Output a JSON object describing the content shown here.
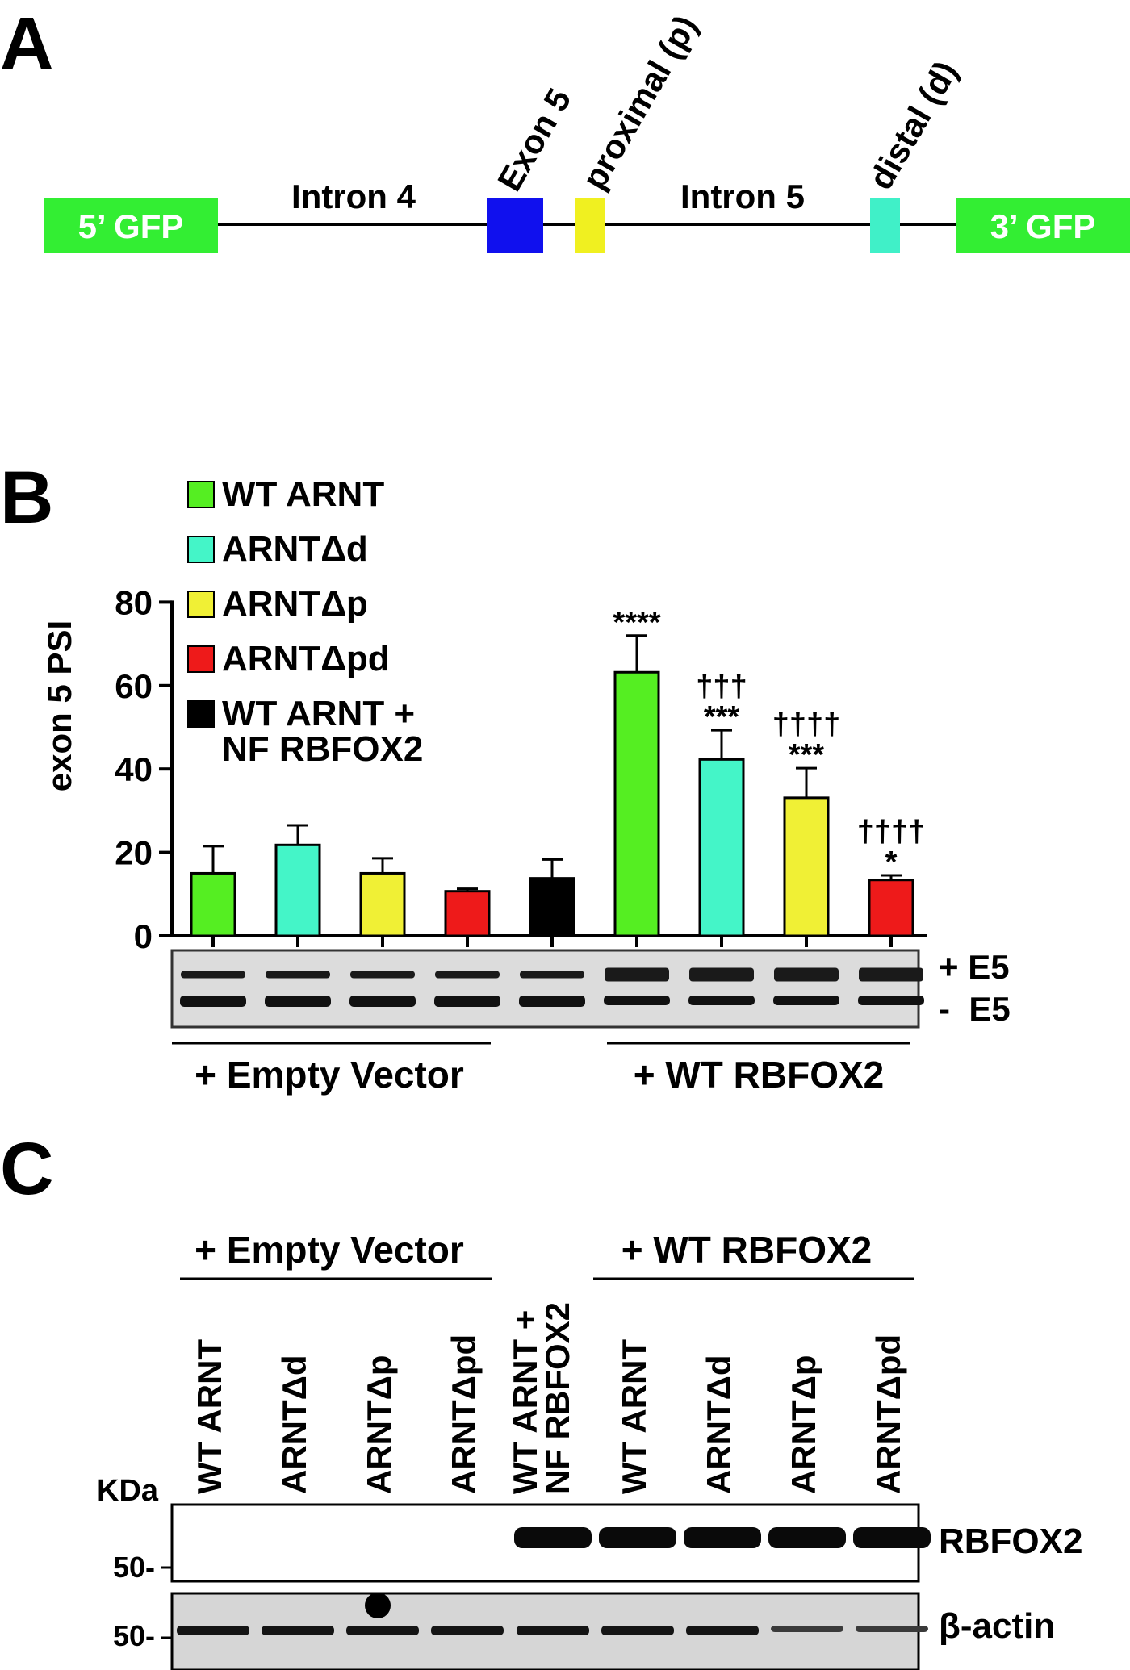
{
  "panels": {
    "a": {
      "letter": "A"
    },
    "b": {
      "letter": "B"
    },
    "c": {
      "letter": "C"
    }
  },
  "construct": {
    "gfp5": "5’ GFP",
    "intron4": "Intron 4",
    "exon5": "Exon 5",
    "proximal": "proximal (p)",
    "intron5": "Intron 5",
    "distal": "distal (d)",
    "gfp3": "3’ GFP",
    "colors": {
      "gfp": "#33ee33",
      "exon5": "#1010ee",
      "proximal": "#f0f020",
      "distal": "#40f0c8"
    }
  },
  "chart_data": {
    "type": "bar",
    "ylabel": "exon 5 PSI",
    "ylim": [
      0,
      80
    ],
    "yticks": [
      0,
      20,
      40,
      60,
      80
    ],
    "legend_position": "top-left",
    "series": [
      {
        "name": "WT ARNT",
        "color": "#55ee22"
      },
      {
        "name": "ARNTΔd",
        "color": "#44f5c8"
      },
      {
        "name": "ARNTΔp",
        "color": "#f0f035"
      },
      {
        "name": "ARNTΔpd",
        "color": "#ee1a1a"
      },
      {
        "name": "WT ARNT + NF RBFOX2",
        "color": "#000000"
      }
    ],
    "legend_lines": [
      [
        "WT ARNT"
      ],
      [
        "ARNTΔd"
      ],
      [
        "ARNTΔp"
      ],
      [
        "ARNTΔpd"
      ],
      [
        "WT ARNT +",
        "NF RBFOX2"
      ]
    ],
    "bars": [
      {
        "series": "WT ARNT",
        "group": "+ Empty Vector",
        "value": 15,
        "error": 6.5,
        "daggers": "",
        "stars": ""
      },
      {
        "series": "ARNTΔd",
        "group": "+ Empty Vector",
        "value": 21.8,
        "error": 4.7,
        "daggers": "",
        "stars": ""
      },
      {
        "series": "ARNTΔp",
        "group": "+ Empty Vector",
        "value": 15,
        "error": 3.6,
        "daggers": "",
        "stars": ""
      },
      {
        "series": "ARNTΔpd",
        "group": "+ Empty Vector",
        "value": 10.7,
        "error": 0.6,
        "daggers": "",
        "stars": ""
      },
      {
        "series": "WT ARNT + NF RBFOX2",
        "group": "",
        "value": 13.8,
        "error": 4.5,
        "daggers": "",
        "stars": ""
      },
      {
        "series": "WT ARNT",
        "group": "+ WT RBFOX2",
        "value": 63.2,
        "error": 8.8,
        "daggers": "",
        "stars": "****"
      },
      {
        "series": "ARNTΔd",
        "group": "+ WT RBFOX2",
        "value": 42.3,
        "error": 7,
        "daggers": "†††",
        "stars": "***"
      },
      {
        "series": "ARNTΔp",
        "group": "+ WT RBFOX2",
        "value": 33.1,
        "error": 7.1,
        "daggers": "††††",
        "stars": "***"
      },
      {
        "series": "ARNTΔpd",
        "group": "+ WT RBFOX2",
        "value": 13.4,
        "error": 1.1,
        "daggers": "††††",
        "stars": "*"
      }
    ],
    "gel_labels": [
      "+ E5",
      "-  E5"
    ],
    "group_labels": [
      "+ Empty Vector",
      "+ WT RBFOX2"
    ]
  },
  "western": {
    "group_labels": [
      "+ Empty Vector",
      "+ WT RBFOX2"
    ],
    "lanes": [
      [
        "WT ARNT"
      ],
      [
        "ARNTΔd"
      ],
      [
        "ARNTΔp"
      ],
      [
        "ARNTΔpd"
      ],
      [
        "WT ARNT +",
        "NF RBFOX2"
      ],
      [
        "WT ARNT"
      ],
      [
        "ARNTΔd"
      ],
      [
        "ARNTΔp"
      ],
      [
        "ARNTΔpd"
      ]
    ],
    "kda_label": "KDa",
    "marker_top": "50-",
    "marker_bottom": "50-",
    "blot_labels": [
      "RBFOX2",
      "β-actin"
    ],
    "rbfox2_present": [
      0,
      0,
      0,
      0,
      1,
      1,
      1,
      1,
      1
    ]
  }
}
